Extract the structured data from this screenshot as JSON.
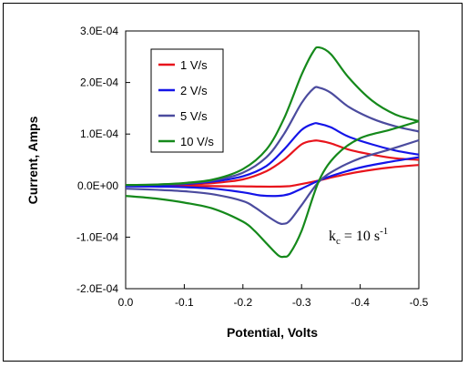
{
  "chart_data": {
    "type": "line",
    "title": "",
    "xlabel": "Potential, Volts",
    "ylabel": "Current, Amps",
    "xlim": [
      0.0,
      -0.5
    ],
    "ylim": [
      -0.0002,
      0.0003
    ],
    "x_ticks": [
      0.0,
      -0.1,
      -0.2,
      -0.3,
      -0.4,
      -0.5
    ],
    "x_tick_labels": [
      "0.0",
      "-0.1",
      "-0.2",
      "-0.3",
      "-0.4",
      "-0.5"
    ],
    "y_ticks": [
      -0.0002,
      -0.0001,
      0.0,
      0.0001,
      0.0002,
      0.0003
    ],
    "y_tick_labels": [
      "-2.0E-04",
      "-1.0E-04",
      "0.0E+00",
      "1.0E-04",
      "2.0E-04",
      "3.0E-04"
    ],
    "grid": false,
    "legend_position": "top-left",
    "annotation": {
      "main": "k",
      "sub": "c",
      "mid": " = 10 s",
      "sup": "-1"
    },
    "series": [
      {
        "name": "1 V/s",
        "color": "#e8141c",
        "forward": {
          "x": [
            0.0,
            -0.05,
            -0.1,
            -0.15,
            -0.2,
            -0.24,
            -0.27,
            -0.3,
            -0.32,
            -0.33,
            -0.35,
            -0.38,
            -0.42,
            -0.46,
            -0.5
          ],
          "y": [
            5e-07,
            1e-06,
            2e-06,
            5e-06,
            1.2e-05,
            2.8e-05,
            5e-05,
            8e-05,
            8.7e-05,
            8.7e-05,
            8.2e-05,
            7e-05,
            6e-05,
            5.3e-05,
            5e-05
          ]
        },
        "reverse": {
          "x": [
            -0.5,
            -0.45,
            -0.4,
            -0.36,
            -0.33,
            -0.3,
            -0.28,
            -0.26,
            -0.23,
            -0.2,
            -0.15,
            -0.1,
            -0.05,
            0.0
          ],
          "y": [
            4e-05,
            3.5e-05,
            2.7e-05,
            1.8e-05,
            1e-05,
            3e-06,
            -1e-06,
            -2e-06,
            -2e-06,
            -1.5e-06,
            -1e-06,
            -5e-07,
            0.0,
            0.0
          ]
        }
      },
      {
        "name": "2 V/s",
        "color": "#1414e8",
        "forward": {
          "x": [
            0.0,
            -0.05,
            -0.1,
            -0.15,
            -0.2,
            -0.24,
            -0.27,
            -0.3,
            -0.32,
            -0.33,
            -0.35,
            -0.38,
            -0.42,
            -0.46,
            -0.5
          ],
          "y": [
            5e-07,
            1e-06,
            3e-06,
            8e-06,
            1.8e-05,
            3.8e-05,
            7e-05,
            0.000108,
            0.00012,
            0.00012,
            0.000113,
            9.5e-05,
            8e-05,
            6.8e-05,
            6e-05
          ]
        },
        "reverse": {
          "x": [
            -0.5,
            -0.45,
            -0.4,
            -0.36,
            -0.33,
            -0.3,
            -0.28,
            -0.26,
            -0.23,
            -0.2,
            -0.15,
            -0.1,
            -0.05,
            0.0
          ],
          "y": [
            5.5e-05,
            4.6e-05,
            3.5e-05,
            2.2e-05,
            1e-05,
            -6e-06,
            -1.6e-05,
            -2e-05,
            -1.9e-05,
            -1.3e-05,
            -6e-06,
            -3e-06,
            -2e-06,
            -1.5e-06
          ]
        }
      },
      {
        "name": "5 V/s",
        "color": "#4b4b9e",
        "forward": {
          "x": [
            0.0,
            -0.05,
            -0.1,
            -0.15,
            -0.2,
            -0.24,
            -0.27,
            -0.3,
            -0.32,
            -0.33,
            -0.35,
            -0.38,
            -0.42,
            -0.46,
            -0.5
          ],
          "y": [
            1e-06,
            2e-06,
            4e-06,
            1e-05,
            2.5e-05,
            5.5e-05,
            0.0001,
            0.00016,
            0.000188,
            0.00019,
            0.00018,
            0.000153,
            0.00013,
            0.000115,
            0.000105
          ]
        },
        "reverse": {
          "x": [
            -0.5,
            -0.45,
            -0.4,
            -0.36,
            -0.33,
            -0.3,
            -0.28,
            -0.27,
            -0.26,
            -0.24,
            -0.22,
            -0.2,
            -0.15,
            -0.1,
            -0.05,
            0.0
          ],
          "y": [
            8.8e-05,
            7e-05,
            5.3e-05,
            3.2e-05,
            8e-06,
            -3.8e-05,
            -6.8e-05,
            -7.4e-05,
            -7.2e-05,
            -5.8e-05,
            -4.2e-05,
            -3e-05,
            -1.7e-05,
            -1.1e-05,
            -8e-06,
            -6e-06
          ]
        }
      },
      {
        "name": "10 V/s",
        "color": "#15891b",
        "forward": {
          "x": [
            0.0,
            -0.05,
            -0.1,
            -0.15,
            -0.2,
            -0.24,
            -0.27,
            -0.3,
            -0.32,
            -0.33,
            -0.35,
            -0.38,
            -0.42,
            -0.46,
            -0.5
          ],
          "y": [
            1e-06,
            2e-06,
            5e-06,
            1.2e-05,
            3.2e-05,
            7e-05,
            0.00013,
            0.000215,
            0.00026,
            0.000268,
            0.000255,
            0.00021,
            0.000165,
            0.000138,
            0.000125
          ]
        },
        "reverse": {
          "x": [
            -0.5,
            -0.45,
            -0.4,
            -0.36,
            -0.33,
            -0.3,
            -0.28,
            -0.27,
            -0.26,
            -0.24,
            -0.22,
            -0.2,
            -0.15,
            -0.1,
            -0.05,
            0.0
          ],
          "y": [
            0.000125,
            0.000108,
            9.2e-05,
            6e-05,
            1e-05,
            -8.8e-05,
            -0.000132,
            -0.000138,
            -0.000135,
            -0.000112,
            -8.8e-05,
            -7e-05,
            -4.5e-05,
            -3.3e-05,
            -2.5e-05,
            -2e-05
          ]
        }
      }
    ]
  }
}
